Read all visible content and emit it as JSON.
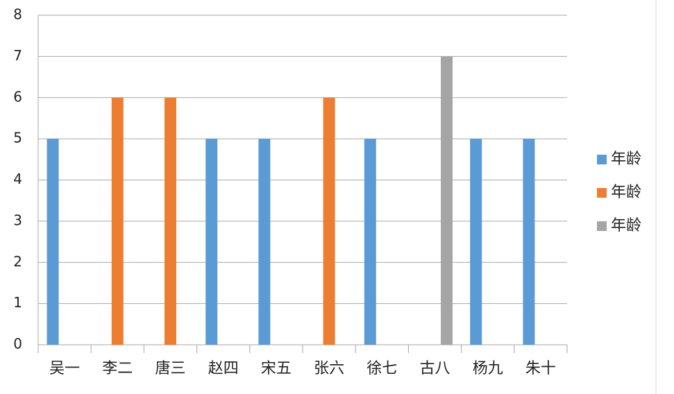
{
  "chart_data": {
    "type": "bar",
    "categories": [
      "吴一",
      "李二",
      "唐三",
      "赵四",
      "宋五",
      "张六",
      "徐七",
      "古八",
      "杨九",
      "朱十"
    ],
    "series": [
      {
        "name": "年龄",
        "color": "#5b9bd5",
        "values": [
          5,
          null,
          null,
          5,
          5,
          null,
          5,
          null,
          5,
          5
        ]
      },
      {
        "name": "年龄",
        "color": "#ed7d31",
        "values": [
          null,
          6,
          6,
          null,
          null,
          6,
          null,
          null,
          null,
          null
        ]
      },
      {
        "name": "年龄",
        "color": "#a5a5a5",
        "values": [
          null,
          null,
          null,
          null,
          null,
          null,
          null,
          7,
          null,
          null
        ]
      }
    ],
    "ylim": [
      0,
      8
    ],
    "yticks": [
      0,
      1,
      2,
      3,
      4,
      5,
      6,
      7,
      8
    ],
    "grid": true,
    "legend": "right"
  }
}
